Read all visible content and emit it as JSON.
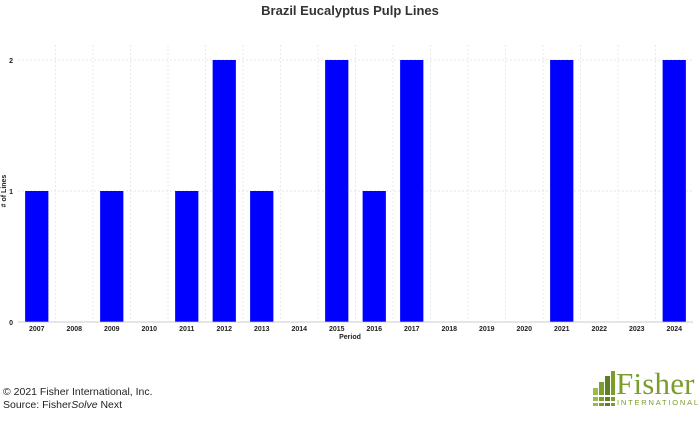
{
  "chart_data": {
    "type": "bar",
    "title": "Brazil Eucalyptus Pulp Lines",
    "xlabel": "Period",
    "ylabel": "# of Lines",
    "categories": [
      "2007",
      "2008",
      "2009",
      "2010",
      "2011",
      "2012",
      "2013",
      "2014",
      "2015",
      "2016",
      "2017",
      "2018",
      "2019",
      "2020",
      "2021",
      "2022",
      "2023",
      "2024"
    ],
    "values": [
      1,
      0,
      1,
      0,
      1,
      2,
      1,
      0,
      2,
      1,
      2,
      0,
      0,
      0,
      2,
      0,
      0,
      2
    ],
    "ylim": [
      0,
      2
    ],
    "yticks": [
      0,
      1,
      2
    ],
    "grid": true,
    "bar_color": "#0000ff"
  },
  "footer": {
    "copyright": "© 2021 Fisher International, Inc.",
    "source_prefix": "Source: Fisher",
    "source_italic": "Solve",
    "source_suffix": " Next"
  },
  "logo": {
    "word": "Fisher",
    "sub": "INTERNATIONAL",
    "color": "#7a9d2e"
  }
}
